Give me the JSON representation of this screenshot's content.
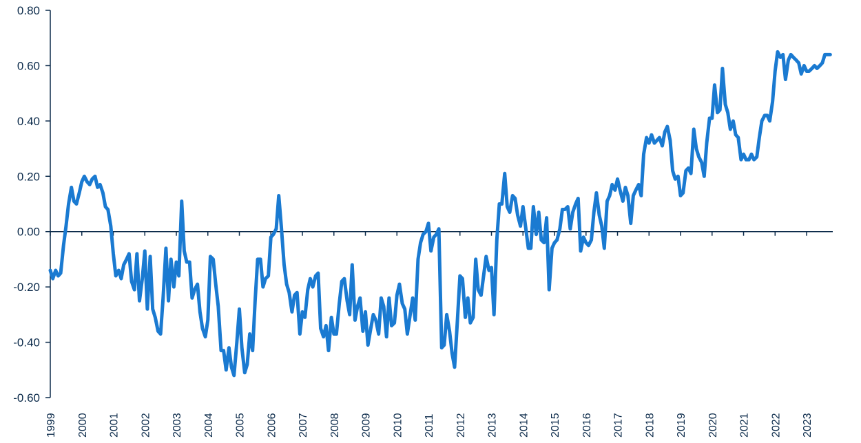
{
  "colors": {
    "series": "#1a7ad1",
    "axis": "#0b2a4a"
  },
  "chart_data": {
    "type": "line",
    "title": "",
    "xlabel": "",
    "ylabel": "",
    "ylim": [
      -0.6,
      0.8
    ],
    "xlim": [
      1999.0,
      2023.83
    ],
    "grid": false,
    "y_ticks": [
      "0.80",
      "0.60",
      "0.40",
      "0.20",
      "0.00",
      "-0.20",
      "-0.40",
      "-0.60"
    ],
    "x_ticks": [
      "1999",
      "2000",
      "2001",
      "2002",
      "2003",
      "2004",
      "2005",
      "2006",
      "2007",
      "2008",
      "2009",
      "2010",
      "2011",
      "2012",
      "2013",
      "2014",
      "2015",
      "2016",
      "2017",
      "2018",
      "2019",
      "2020",
      "2021",
      "2022",
      "2023"
    ],
    "series": [
      {
        "points": [
          [
            1999.0,
            -0.14
          ],
          [
            1999.08,
            -0.17
          ],
          [
            1999.17,
            -0.14
          ],
          [
            1999.25,
            -0.16
          ],
          [
            1999.33,
            -0.15
          ],
          [
            1999.42,
            -0.05
          ],
          [
            1999.5,
            0.02
          ],
          [
            1999.58,
            0.1
          ],
          [
            1999.67,
            0.16
          ],
          [
            1999.75,
            0.11
          ],
          [
            1999.83,
            0.1
          ],
          [
            1999.92,
            0.14
          ],
          [
            2000.0,
            0.18
          ],
          [
            2000.08,
            0.2
          ],
          [
            2000.17,
            0.18
          ],
          [
            2000.25,
            0.17
          ],
          [
            2000.33,
            0.19
          ],
          [
            2000.42,
            0.2
          ],
          [
            2000.5,
            0.16
          ],
          [
            2000.58,
            0.17
          ],
          [
            2000.67,
            0.14
          ],
          [
            2000.75,
            0.09
          ],
          [
            2000.83,
            0.08
          ],
          [
            2000.92,
            0.02
          ],
          [
            2001.0,
            -0.08
          ],
          [
            2001.08,
            -0.16
          ],
          [
            2001.17,
            -0.14
          ],
          [
            2001.25,
            -0.17
          ],
          [
            2001.33,
            -0.12
          ],
          [
            2001.42,
            -0.1
          ],
          [
            2001.5,
            -0.08
          ],
          [
            2001.58,
            -0.18
          ],
          [
            2001.67,
            -0.21
          ],
          [
            2001.75,
            -0.08
          ],
          [
            2001.83,
            -0.25
          ],
          [
            2001.92,
            -0.17
          ],
          [
            2002.0,
            -0.07
          ],
          [
            2002.08,
            -0.28
          ],
          [
            2002.17,
            -0.09
          ],
          [
            2002.25,
            -0.28
          ],
          [
            2002.33,
            -0.31
          ],
          [
            2002.42,
            -0.36
          ],
          [
            2002.5,
            -0.37
          ],
          [
            2002.58,
            -0.24
          ],
          [
            2002.67,
            -0.06
          ],
          [
            2002.75,
            -0.25
          ],
          [
            2002.83,
            -0.1
          ],
          [
            2002.92,
            -0.2
          ],
          [
            2003.0,
            -0.11
          ],
          [
            2003.08,
            -0.16
          ],
          [
            2003.17,
            0.11
          ],
          [
            2003.25,
            -0.07
          ],
          [
            2003.33,
            -0.11
          ],
          [
            2003.42,
            -0.11
          ],
          [
            2003.5,
            -0.24
          ],
          [
            2003.58,
            -0.21
          ],
          [
            2003.67,
            -0.19
          ],
          [
            2003.75,
            -0.29
          ],
          [
            2003.83,
            -0.35
          ],
          [
            2003.92,
            -0.38
          ],
          [
            2004.0,
            -0.32
          ],
          [
            2004.08,
            -0.09
          ],
          [
            2004.17,
            -0.1
          ],
          [
            2004.25,
            -0.19
          ],
          [
            2004.33,
            -0.27
          ],
          [
            2004.42,
            -0.43
          ],
          [
            2004.5,
            -0.43
          ],
          [
            2004.58,
            -0.5
          ],
          [
            2004.67,
            -0.42
          ],
          [
            2004.75,
            -0.49
          ],
          [
            2004.83,
            -0.52
          ],
          [
            2004.92,
            -0.4
          ],
          [
            2005.0,
            -0.28
          ],
          [
            2005.08,
            -0.42
          ],
          [
            2005.17,
            -0.51
          ],
          [
            2005.25,
            -0.48
          ],
          [
            2005.33,
            -0.37
          ],
          [
            2005.42,
            -0.43
          ],
          [
            2005.5,
            -0.25
          ],
          [
            2005.58,
            -0.1
          ],
          [
            2005.67,
            -0.1
          ],
          [
            2005.75,
            -0.2
          ],
          [
            2005.83,
            -0.17
          ],
          [
            2005.92,
            -0.16
          ],
          [
            2006.0,
            -0.02
          ],
          [
            2006.08,
            -0.01
          ],
          [
            2006.17,
            0.01
          ],
          [
            2006.25,
            0.13
          ],
          [
            2006.33,
            0.02
          ],
          [
            2006.42,
            -0.12
          ],
          [
            2006.5,
            -0.19
          ],
          [
            2006.58,
            -0.22
          ],
          [
            2006.67,
            -0.29
          ],
          [
            2006.75,
            -0.23
          ],
          [
            2006.83,
            -0.22
          ],
          [
            2006.92,
            -0.37
          ],
          [
            2007.0,
            -0.29
          ],
          [
            2007.08,
            -0.31
          ],
          [
            2007.17,
            -0.21
          ],
          [
            2007.25,
            -0.17
          ],
          [
            2007.33,
            -0.2
          ],
          [
            2007.42,
            -0.16
          ],
          [
            2007.5,
            -0.15
          ],
          [
            2007.58,
            -0.35
          ],
          [
            2007.67,
            -0.38
          ],
          [
            2007.75,
            -0.34
          ],
          [
            2007.83,
            -0.43
          ],
          [
            2007.92,
            -0.31
          ],
          [
            2008.0,
            -0.37
          ],
          [
            2008.08,
            -0.37
          ],
          [
            2008.17,
            -0.26
          ],
          [
            2008.25,
            -0.18
          ],
          [
            2008.33,
            -0.17
          ],
          [
            2008.42,
            -0.25
          ],
          [
            2008.5,
            -0.3
          ],
          [
            2008.58,
            -0.12
          ],
          [
            2008.67,
            -0.32
          ],
          [
            2008.75,
            -0.27
          ],
          [
            2008.83,
            -0.24
          ],
          [
            2008.92,
            -0.36
          ],
          [
            2009.0,
            -0.29
          ],
          [
            2009.08,
            -0.41
          ],
          [
            2009.17,
            -0.35
          ],
          [
            2009.25,
            -0.3
          ],
          [
            2009.33,
            -0.32
          ],
          [
            2009.42,
            -0.37
          ],
          [
            2009.5,
            -0.24
          ],
          [
            2009.58,
            -0.27
          ],
          [
            2009.67,
            -0.38
          ],
          [
            2009.75,
            -0.24
          ],
          [
            2009.83,
            -0.34
          ],
          [
            2009.92,
            -0.33
          ],
          [
            2010.0,
            -0.23
          ],
          [
            2010.08,
            -0.19
          ],
          [
            2010.17,
            -0.26
          ],
          [
            2010.25,
            -0.28
          ],
          [
            2010.33,
            -0.37
          ],
          [
            2010.42,
            -0.3
          ],
          [
            2010.5,
            -0.24
          ],
          [
            2010.58,
            -0.32
          ],
          [
            2010.67,
            -0.1
          ],
          [
            2010.75,
            -0.04
          ],
          [
            2010.83,
            -0.01
          ],
          [
            2010.92,
            0.0
          ],
          [
            2011.0,
            0.03
          ],
          [
            2011.08,
            -0.07
          ],
          [
            2011.17,
            -0.02
          ],
          [
            2011.25,
            -0.01
          ],
          [
            2011.33,
            0.01
          ],
          [
            2011.42,
            -0.42
          ],
          [
            2011.5,
            -0.41
          ],
          [
            2011.58,
            -0.3
          ],
          [
            2011.67,
            -0.36
          ],
          [
            2011.75,
            -0.44
          ],
          [
            2011.83,
            -0.49
          ],
          [
            2011.92,
            -0.32
          ],
          [
            2012.0,
            -0.16
          ],
          [
            2012.08,
            -0.17
          ],
          [
            2012.17,
            -0.31
          ],
          [
            2012.25,
            -0.24
          ],
          [
            2012.33,
            -0.33
          ],
          [
            2012.42,
            -0.31
          ],
          [
            2012.5,
            -0.1
          ],
          [
            2012.58,
            -0.21
          ],
          [
            2012.67,
            -0.23
          ],
          [
            2012.75,
            -0.16
          ],
          [
            2012.83,
            -0.09
          ],
          [
            2012.92,
            -0.14
          ],
          [
            2013.0,
            -0.13
          ],
          [
            2013.08,
            -0.3
          ],
          [
            2013.17,
            -0.03
          ],
          [
            2013.25,
            0.1
          ],
          [
            2013.33,
            0.1
          ],
          [
            2013.42,
            0.21
          ],
          [
            2013.5,
            0.09
          ],
          [
            2013.58,
            0.07
          ],
          [
            2013.67,
            0.13
          ],
          [
            2013.75,
            0.12
          ],
          [
            2013.83,
            0.06
          ],
          [
            2013.92,
            0.02
          ],
          [
            2014.0,
            0.09
          ],
          [
            2014.08,
            0.02
          ],
          [
            2014.17,
            -0.06
          ],
          [
            2014.25,
            -0.06
          ],
          [
            2014.33,
            0.09
          ],
          [
            2014.42,
            -0.01
          ],
          [
            2014.5,
            0.07
          ],
          [
            2014.58,
            -0.03
          ],
          [
            2014.67,
            -0.04
          ],
          [
            2014.75,
            0.05
          ],
          [
            2014.83,
            -0.21
          ],
          [
            2014.92,
            -0.06
          ],
          [
            2015.0,
            -0.04
          ],
          [
            2015.08,
            -0.03
          ],
          [
            2015.17,
            0.01
          ],
          [
            2015.25,
            0.08
          ],
          [
            2015.33,
            0.08
          ],
          [
            2015.42,
            0.09
          ],
          [
            2015.5,
            0.01
          ],
          [
            2015.58,
            0.07
          ],
          [
            2015.67,
            0.1
          ],
          [
            2015.75,
            0.12
          ],
          [
            2015.83,
            -0.07
          ],
          [
            2015.92,
            -0.02
          ],
          [
            2016.0,
            -0.04
          ],
          [
            2016.08,
            -0.05
          ],
          [
            2016.17,
            -0.03
          ],
          [
            2016.25,
            0.07
          ],
          [
            2016.33,
            0.14
          ],
          [
            2016.42,
            0.06
          ],
          [
            2016.5,
            0.02
          ],
          [
            2016.58,
            -0.06
          ],
          [
            2016.67,
            0.11
          ],
          [
            2016.75,
            0.13
          ],
          [
            2016.83,
            0.17
          ],
          [
            2016.92,
            0.15
          ],
          [
            2017.0,
            0.19
          ],
          [
            2017.08,
            0.15
          ],
          [
            2017.17,
            0.11
          ],
          [
            2017.25,
            0.16
          ],
          [
            2017.33,
            0.13
          ],
          [
            2017.42,
            0.03
          ],
          [
            2017.5,
            0.13
          ],
          [
            2017.58,
            0.15
          ],
          [
            2017.67,
            0.17
          ],
          [
            2017.75,
            0.13
          ],
          [
            2017.83,
            0.28
          ],
          [
            2017.92,
            0.34
          ],
          [
            2018.0,
            0.32
          ],
          [
            2018.08,
            0.35
          ],
          [
            2018.17,
            0.32
          ],
          [
            2018.25,
            0.33
          ],
          [
            2018.33,
            0.34
          ],
          [
            2018.42,
            0.31
          ],
          [
            2018.5,
            0.36
          ],
          [
            2018.58,
            0.38
          ],
          [
            2018.67,
            0.33
          ],
          [
            2018.75,
            0.22
          ],
          [
            2018.83,
            0.19
          ],
          [
            2018.92,
            0.2
          ],
          [
            2019.0,
            0.13
          ],
          [
            2019.08,
            0.14
          ],
          [
            2019.17,
            0.22
          ],
          [
            2019.25,
            0.23
          ],
          [
            2019.33,
            0.21
          ],
          [
            2019.42,
            0.37
          ],
          [
            2019.5,
            0.3
          ],
          [
            2019.58,
            0.27
          ],
          [
            2019.67,
            0.25
          ],
          [
            2019.75,
            0.2
          ],
          [
            2019.83,
            0.32
          ],
          [
            2019.92,
            0.41
          ],
          [
            2020.0,
            0.41
          ],
          [
            2020.08,
            0.53
          ],
          [
            2020.17,
            0.43
          ],
          [
            2020.25,
            0.44
          ],
          [
            2020.33,
            0.59
          ],
          [
            2020.42,
            0.46
          ],
          [
            2020.5,
            0.43
          ],
          [
            2020.58,
            0.37
          ],
          [
            2020.67,
            0.4
          ],
          [
            2020.75,
            0.35
          ],
          [
            2020.83,
            0.34
          ],
          [
            2020.92,
            0.26
          ],
          [
            2021.0,
            0.28
          ],
          [
            2021.08,
            0.26
          ],
          [
            2021.17,
            0.26
          ],
          [
            2021.25,
            0.28
          ],
          [
            2021.33,
            0.26
          ],
          [
            2021.42,
            0.27
          ],
          [
            2021.5,
            0.34
          ],
          [
            2021.58,
            0.4
          ],
          [
            2021.67,
            0.42
          ],
          [
            2021.75,
            0.42
          ],
          [
            2021.83,
            0.4
          ],
          [
            2021.92,
            0.47
          ],
          [
            2022.0,
            0.58
          ],
          [
            2022.08,
            0.65
          ],
          [
            2022.17,
            0.63
          ],
          [
            2022.25,
            0.64
          ],
          [
            2022.33,
            0.55
          ],
          [
            2022.42,
            0.62
          ],
          [
            2022.5,
            0.64
          ],
          [
            2022.58,
            0.63
          ],
          [
            2022.67,
            0.62
          ],
          [
            2022.75,
            0.61
          ],
          [
            2022.83,
            0.57
          ],
          [
            2022.92,
            0.6
          ],
          [
            2023.0,
            0.58
          ],
          [
            2023.08,
            0.58
          ],
          [
            2023.17,
            0.59
          ],
          [
            2023.25,
            0.6
          ],
          [
            2023.33,
            0.59
          ],
          [
            2023.42,
            0.6
          ],
          [
            2023.5,
            0.61
          ],
          [
            2023.58,
            0.64
          ],
          [
            2023.67,
            0.64
          ],
          [
            2023.75,
            0.64
          ]
        ]
      }
    ]
  }
}
